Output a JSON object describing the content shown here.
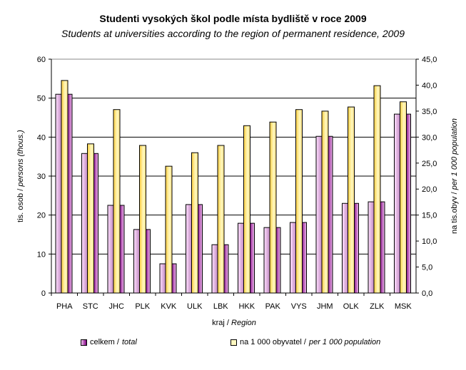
{
  "chart_data": {
    "type": "bar",
    "title": "Studenti vysokých škol podle místa bydliště v roce 2009",
    "subtitle": "Students at universities according to the region of permanent residence, 2009",
    "xlabel": "kraj / Region",
    "ylabel": "tis. osob / persons (thous.)",
    "y2label": "na tis.obyv / per 1 000 population",
    "categories": [
      "PHA",
      "STC",
      "JHC",
      "PLK",
      "KVK",
      "ULK",
      "LBK",
      "HKK",
      "PAK",
      "VYS",
      "JHM",
      "OLK",
      "ZLK",
      "MSK"
    ],
    "ylim": [
      0,
      60
    ],
    "y2lim": [
      0,
      45
    ],
    "yticks": [
      "0",
      "10",
      "20",
      "30",
      "40",
      "50",
      "60"
    ],
    "y2ticks": [
      "0,0",
      "5,0",
      "10,0",
      "15,0",
      "20,0",
      "25,0",
      "30,0",
      "35,0",
      "40,0",
      "45,0"
    ],
    "grid": true,
    "legend_position": "bottom",
    "series": [
      {
        "name": "celkem / total",
        "axis": "left",
        "color": "#800080",
        "values": [
          51.0,
          35.8,
          22.5,
          16.3,
          7.5,
          22.7,
          12.4,
          17.9,
          16.8,
          18.1,
          40.2,
          23.0,
          23.4,
          45.9
        ]
      },
      {
        "name": "na 1 000 obyvatel / per 1 000 population",
        "axis": "right",
        "color": "#ffd966",
        "values": [
          40.9,
          28.7,
          35.3,
          28.4,
          24.4,
          27.0,
          28.4,
          32.2,
          32.9,
          35.3,
          35.0,
          35.8,
          39.9,
          36.8
        ]
      }
    ]
  },
  "legend": {
    "total_cz": "celkem / ",
    "total_en": "total",
    "rate_cz": "na 1 000 obyvatel / ",
    "rate_en": "per 1 000 population"
  },
  "labels": {
    "ylabel_cz": "tis. osob / ",
    "ylabel_en": "persons (thous.)",
    "y2label_cz": "na tis.obyv / ",
    "y2label_en": "per 1 000 population",
    "xlabel_cz": "kraj / ",
    "xlabel_en": "Region"
  }
}
